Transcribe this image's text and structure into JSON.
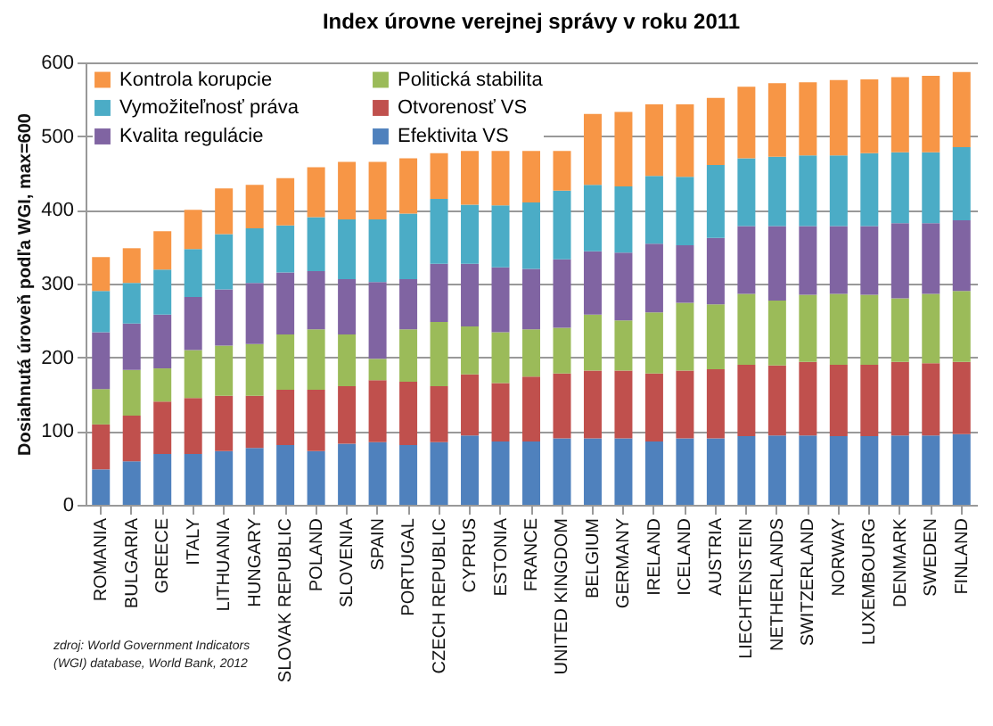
{
  "chart_data": {
    "type": "bar",
    "title": "Index úrovne verejnej správy v roku 2011",
    "ylabel": "Dosiahnutá úroveň podľa WGI, max=600",
    "categories": [
      "ROMANIA",
      "BULGARIA",
      "GREECE",
      "ITALY",
      "LITHUANIA",
      "HUNGARY",
      "SLOVAK REPUBLIC",
      "POLAND",
      "SLOVENIA",
      "SPAIN",
      "PORTUGAL",
      "CZECH REPUBLIC",
      "CYPRUS",
      "ESTONIA",
      "FRANCE",
      "UNITED KINGDOM",
      "BELGIUM",
      "GERMANY",
      "IRELAND",
      "ICELAND",
      "AUSTRIA",
      "LIECHTENSTEIN",
      "NETHERLANDS",
      "SWITZERLAND",
      "NORWAY",
      "LUXEMBOURG",
      "DENMARK",
      "SWEDEN",
      "FINLAND"
    ],
    "stacked": true,
    "series": [
      {
        "name": "Efektivita VS",
        "color": "#4f81bd",
        "values": [
          48,
          59,
          69,
          69,
          73,
          77,
          81,
          73,
          83,
          85,
          81,
          85,
          94,
          86,
          86,
          90,
          90,
          90,
          86,
          90,
          90,
          93,
          94,
          94,
          93,
          93,
          94,
          94,
          96
        ]
      },
      {
        "name": "Otvorenosť VS",
        "color": "#c0504d",
        "values": [
          61,
          62,
          71,
          76,
          75,
          71,
          75,
          83,
          78,
          84,
          86,
          76,
          83,
          79,
          88,
          88,
          92,
          92,
          92,
          92,
          94,
          97,
          95,
          100,
          97,
          97,
          100,
          98,
          98
        ]
      },
      {
        "name": "Politická stabilita",
        "color": "#9bbb59",
        "values": [
          48,
          62,
          45,
          65,
          68,
          70,
          75,
          82,
          70,
          29,
          71,
          87,
          65,
          69,
          64,
          62,
          76,
          68,
          83,
          92,
          88,
          96,
          88,
          91,
          96,
          95,
          86,
          94,
          96
        ]
      },
      {
        "name": "Kvalita regulácie",
        "color": "#8064a2",
        "values": [
          77,
          63,
          73,
          72,
          76,
          83,
          84,
          79,
          75,
          104,
          68,
          79,
          85,
          88,
          82,
          93,
          86,
          92,
          93,
          78,
          90,
          92,
          101,
          93,
          92,
          93,
          102,
          96,
          96
        ]
      },
      {
        "name": "Vymožiteľnosť práva",
        "color": "#4bacc6",
        "values": [
          56,
          55,
          61,
          65,
          75,
          74,
          64,
          73,
          81,
          85,
          89,
          88,
          80,
          84,
          90,
          93,
          90,
          90,
          92,
          93,
          99,
          92,
          94,
          96,
          96,
          99,
          96,
          96,
          99
        ]
      },
      {
        "name": "Kontrola korupcie",
        "color": "#f79646",
        "values": [
          46,
          47,
          52,
          53,
          62,
          59,
          64,
          68,
          78,
          78,
          75,
          62,
          73,
          74,
          70,
          54,
          96,
          101,
          97,
          98,
          91,
          97,
          100,
          99,
          102,
          100,
          102,
          104,
          102
        ]
      }
    ],
    "ylim": [
      0,
      600
    ],
    "yticks": [
      0,
      100,
      200,
      300,
      400,
      500,
      600
    ],
    "grid": "y",
    "legend": "top left",
    "annotations": [
      "zdroj: World Government Indicators (WGI) database, World Bank, 2012"
    ]
  }
}
